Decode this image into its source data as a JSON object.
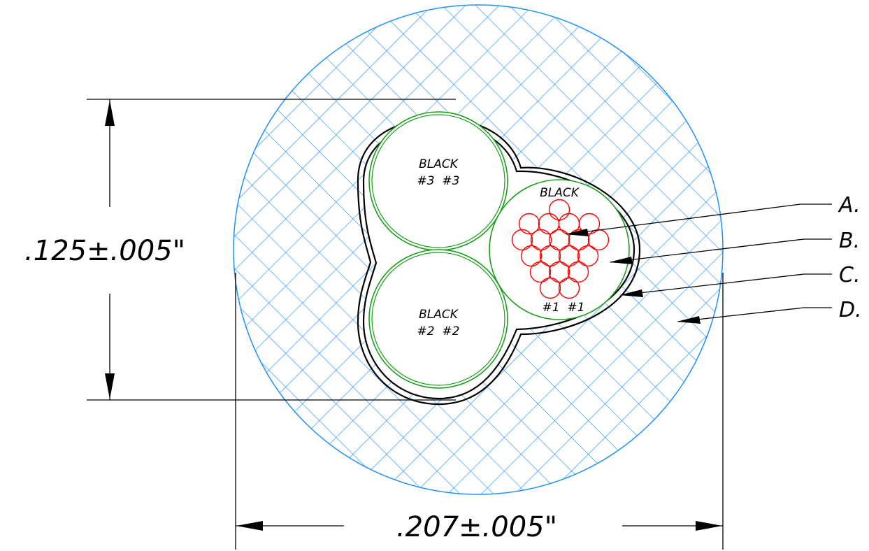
{
  "dimensions": {
    "vertical": ".125±.005\"",
    "horizontal": ".207±.005\""
  },
  "conductors": [
    {
      "color": "BLACK",
      "number": "#1  #1"
    },
    {
      "color": "BLACK",
      "number": "#2  #2"
    },
    {
      "color": "BLACK",
      "number": "#3  #3"
    }
  ],
  "callouts": [
    "A.",
    "B.",
    "C.",
    "D."
  ],
  "colors": {
    "jacket_hatch": "#1e90ff",
    "insulation": "#1a9e1a",
    "strands": "#ff0000",
    "lines": "#000000"
  }
}
